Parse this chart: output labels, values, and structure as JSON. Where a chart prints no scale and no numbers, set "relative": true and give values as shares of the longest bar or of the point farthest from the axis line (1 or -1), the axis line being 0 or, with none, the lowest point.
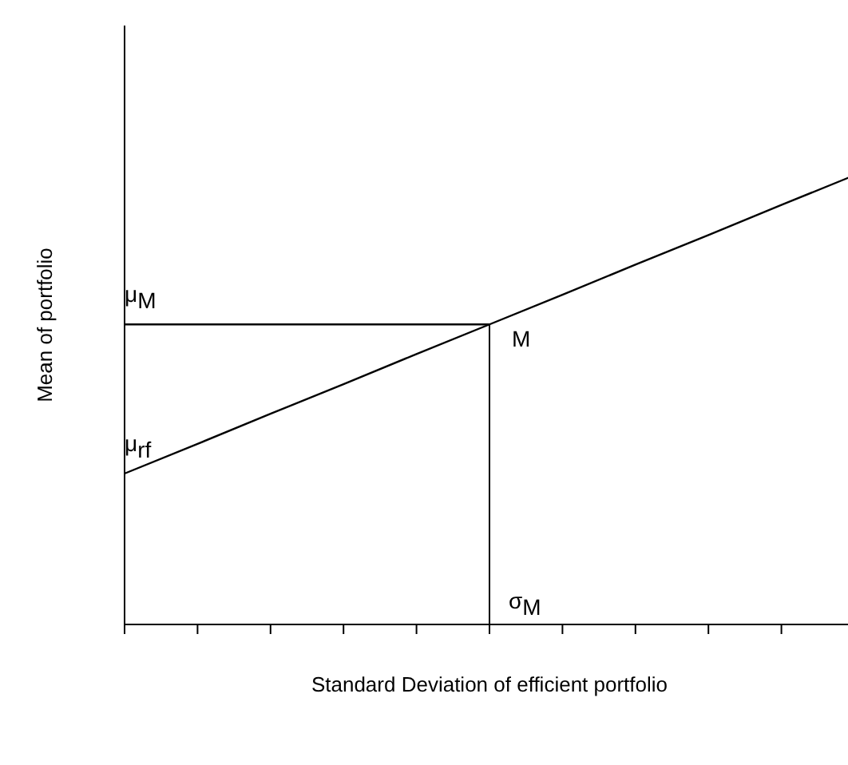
{
  "chart_data": {
    "type": "line",
    "relative": true,
    "xlabel": "Standard Deviation of efficient portfolio",
    "ylabel": "Mean of portfolio",
    "grid": false,
    "legend": false,
    "marker": "none",
    "line_style": "solid",
    "categories": [
      null,
      null,
      null,
      null,
      null,
      null,
      null,
      null,
      null,
      null,
      null
    ],
    "series": [
      {
        "color": "#000000",
        "values": [
          0.336,
          0.402,
          0.469,
          0.535,
          0.602,
          0.668,
          0.734,
          0.801,
          0.867,
          0.934,
          1
        ]
      },
      {
        "color": "#000000",
        "values": [
          0.668,
          0.668,
          0.668,
          0.668,
          0.668,
          0.668,
          null,
          null,
          null,
          null,
          null
        ]
      }
    ],
    "ref_lines": [
      {
        "axis": "x",
        "label": "σ$_{M}$",
        "color": "#000000"
      }
    ],
    "annotations": [
      {
        "text": "μ$_{M}$",
        "y": 0.668
      },
      {
        "text": "μ$_{rf}$",
        "y": 0.336
      },
      "M"
    ]
  }
}
